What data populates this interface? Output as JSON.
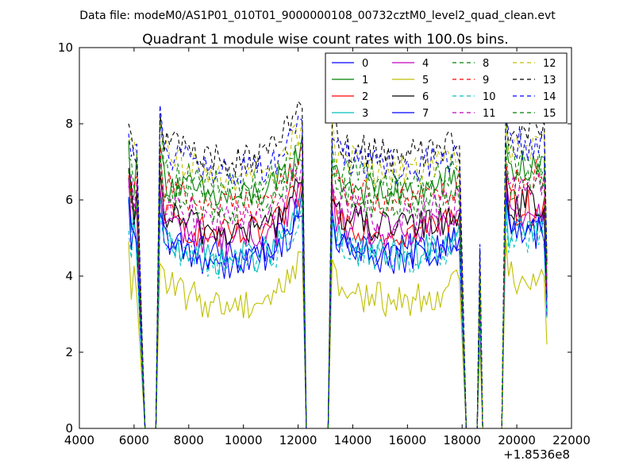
{
  "figure": {
    "suptitle": "Data file: modeM0/AS1P01_010T01_9000000108_00732cztM0_level2_quad_clean.evt"
  },
  "chart_data": {
    "type": "line",
    "title": "Quadrant 1 module wise count rates with 100.0s bins.",
    "xlabel": "",
    "ylabel": "",
    "x_offset_label": "+1.8536e8",
    "xlim": [
      4000,
      22000
    ],
    "ylim": [
      0,
      10
    ],
    "xticks": [
      4000,
      6000,
      8000,
      10000,
      12000,
      14000,
      16000,
      18000,
      20000,
      22000
    ],
    "yticks": [
      0,
      2,
      4,
      6,
      8,
      10
    ],
    "legend_position": "top-right",
    "legend_columns": 4,
    "bin_seconds": 100,
    "segments": [
      {
        "start": 5800,
        "end": 6200
      },
      {
        "start": 6900,
        "end": 12100
      },
      {
        "start": 13200,
        "end": 18000
      },
      {
        "start": 18650,
        "end": 18650
      },
      {
        "start": 19600,
        "end": 21100
      }
    ],
    "series": [
      {
        "name": "0",
        "color": "#0000ff",
        "dash": "solid",
        "level": 5.1
      },
      {
        "name": "1",
        "color": "#008000",
        "dash": "solid",
        "level": 6.6
      },
      {
        "name": "2",
        "color": "#ff0000",
        "dash": "solid",
        "level": 5.6
      },
      {
        "name": "3",
        "color": "#00bfbf",
        "dash": "solid",
        "level": 5.0
      },
      {
        "name": "4",
        "color": "#bf00bf",
        "dash": "solid",
        "level": 5.5
      },
      {
        "name": "5",
        "color": "#bfbf00",
        "dash": "solid",
        "level": 3.8
      },
      {
        "name": "6",
        "color": "#000000",
        "dash": "solid",
        "level": 5.7
      },
      {
        "name": "7",
        "color": "#0000ff",
        "dash": "solid",
        "level": 4.9
      },
      {
        "name": "8",
        "color": "#008000",
        "dash": "dashed",
        "level": 6.9
      },
      {
        "name": "9",
        "color": "#ff0000",
        "dash": "dashed",
        "level": 6.4
      },
      {
        "name": "10",
        "color": "#00bfbf",
        "dash": "dashed",
        "level": 4.9
      },
      {
        "name": "11",
        "color": "#bf00bf",
        "dash": "dashed",
        "level": 6.0
      },
      {
        "name": "12",
        "color": "#bfbf00",
        "dash": "dashed",
        "level": 7.2
      },
      {
        "name": "13",
        "color": "#000000",
        "dash": "dashed",
        "level": 7.6
      },
      {
        "name": "14",
        "color": "#0000ff",
        "dash": "dashed",
        "level": 7.3
      },
      {
        "name": "15",
        "color": "#008000",
        "dash": "dashed",
        "level": 6.3
      }
    ]
  }
}
